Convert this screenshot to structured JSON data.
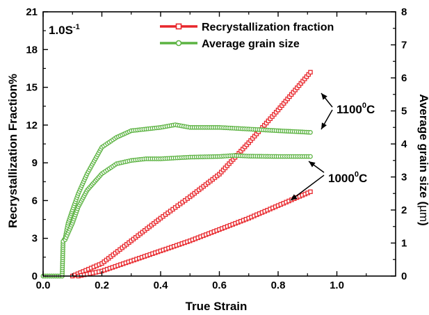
{
  "chart_data": {
    "type": "line",
    "rate_label": {
      "main": "1.0S",
      "sup": "-1"
    },
    "xlabel": "True Strain",
    "ylabel_left": "Recrystallization Fraction%",
    "ylabel_right": {
      "main": "Average grain size (",
      "unit": "µm",
      "close": ")"
    },
    "xlim": [
      0,
      1.2
    ],
    "ylim_left": [
      0,
      21
    ],
    "ylim_right": [
      0,
      8
    ],
    "x_ticks": [
      0.0,
      0.2,
      0.4,
      0.6,
      0.8,
      1.0
    ],
    "x_tick_labels": [
      "0.0",
      "0.2",
      "0.4",
      "0.6",
      "0.8",
      "1.0"
    ],
    "y_left_ticks": [
      0,
      3,
      6,
      9,
      12,
      15,
      18,
      21
    ],
    "y_left_tick_labels": [
      "0",
      "3",
      "6",
      "9",
      "12",
      "15",
      "18",
      "21"
    ],
    "y_right_ticks": [
      0,
      1,
      2,
      3,
      4,
      5,
      6,
      7,
      8
    ],
    "y_right_tick_labels": [
      "0",
      "1",
      "2",
      "3",
      "4",
      "5",
      "6",
      "7",
      "8"
    ],
    "legend": [
      {
        "name": "Recrystallization fraction",
        "color": "#e8262b",
        "marker": "square"
      },
      {
        "name": "Average grain size",
        "color": "#5cb342",
        "marker": "circle"
      }
    ],
    "legend_position": "top-right",
    "annotations": [
      {
        "main": "1100",
        "sup": "0",
        "tail": "C"
      },
      {
        "main": "1000",
        "sup": "0",
        "tail": "C"
      }
    ],
    "series": [
      {
        "temperature": "1100°C",
        "quantity": "recrystallization fraction",
        "axis": "left",
        "x": [
          0.1,
          0.2,
          0.3,
          0.4,
          0.5,
          0.6,
          0.7,
          0.8,
          0.91
        ],
        "y": [
          0.0,
          1.0,
          2.8,
          4.6,
          6.3,
          8.1,
          10.6,
          13.2,
          16.2
        ]
      },
      {
        "temperature": "1000°C",
        "quantity": "recrystallization fraction",
        "axis": "left",
        "x": [
          0.12,
          0.2,
          0.3,
          0.4,
          0.5,
          0.6,
          0.7,
          0.8,
          0.91
        ],
        "y": [
          0.0,
          0.4,
          1.2,
          2.0,
          2.8,
          3.7,
          4.6,
          5.6,
          6.7
        ]
      },
      {
        "temperature": "1100°C",
        "quantity": "average grain size",
        "axis": "right",
        "x": [
          0.0,
          0.065,
          0.068,
          0.075,
          0.085,
          0.1,
          0.12,
          0.15,
          0.2,
          0.25,
          0.3,
          0.35,
          0.4,
          0.45,
          0.5,
          0.6,
          0.7,
          0.8,
          0.91
        ],
        "y": [
          0.0,
          0.0,
          1.05,
          1.15,
          1.6,
          2.0,
          2.5,
          3.1,
          3.9,
          4.2,
          4.4,
          4.45,
          4.5,
          4.58,
          4.5,
          4.5,
          4.45,
          4.4,
          4.35
        ]
      },
      {
        "temperature": "1000°C",
        "quantity": "average grain size",
        "axis": "right",
        "x": [
          0.0,
          0.065,
          0.068,
          0.075,
          0.085,
          0.1,
          0.12,
          0.15,
          0.2,
          0.25,
          0.3,
          0.35,
          0.4,
          0.5,
          0.6,
          0.65,
          0.7,
          0.8,
          0.91
        ],
        "y": [
          0.0,
          0.0,
          1.05,
          1.1,
          1.3,
          1.6,
          2.1,
          2.6,
          3.1,
          3.4,
          3.5,
          3.55,
          3.55,
          3.6,
          3.62,
          3.65,
          3.63,
          3.62,
          3.62
        ]
      }
    ]
  }
}
